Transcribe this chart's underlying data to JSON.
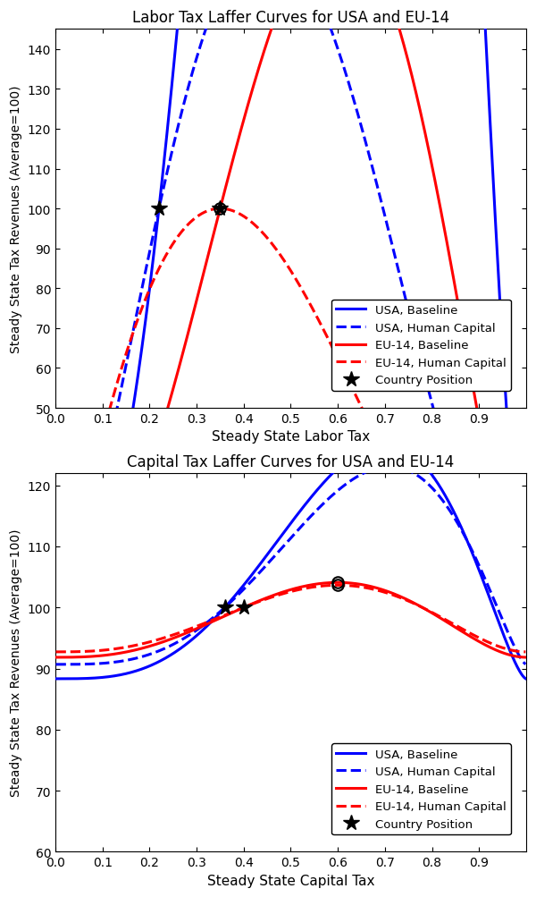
{
  "title1": "Labor Tax Laffer Curves for USA and EU-14",
  "title2": "Capital Tax Laffer Curves for USA and EU-14",
  "xlabel1": "Steady State Labor Tax",
  "xlabel2": "Steady State Capital Tax",
  "ylabel": "Steady State Tax Revenues (Average=100)",
  "labor_ylim": [
    50,
    145
  ],
  "labor_yticks": [
    50,
    60,
    70,
    80,
    90,
    100,
    110,
    120,
    130,
    140
  ],
  "labor_xlim": [
    0,
    1.0
  ],
  "labor_xticks": [
    0,
    0.1,
    0.2,
    0.3,
    0.4,
    0.5,
    0.6,
    0.7,
    0.8,
    0.9
  ],
  "capital_ylim": [
    60,
    122
  ],
  "capital_yticks": [
    60,
    70,
    80,
    90,
    100,
    110,
    120
  ],
  "capital_xlim": [
    0,
    1.0
  ],
  "capital_xticks": [
    0,
    0.1,
    0.2,
    0.3,
    0.4,
    0.5,
    0.6,
    0.7,
    0.8,
    0.9
  ],
  "colors": {
    "usa": "#0000FF",
    "eu": "#FF0000"
  },
  "legend_items": [
    "USA, Baseline",
    "USA, Human Capital",
    "EU-14, Baseline",
    "EU-14, Human Capital",
    "Country Position"
  ]
}
